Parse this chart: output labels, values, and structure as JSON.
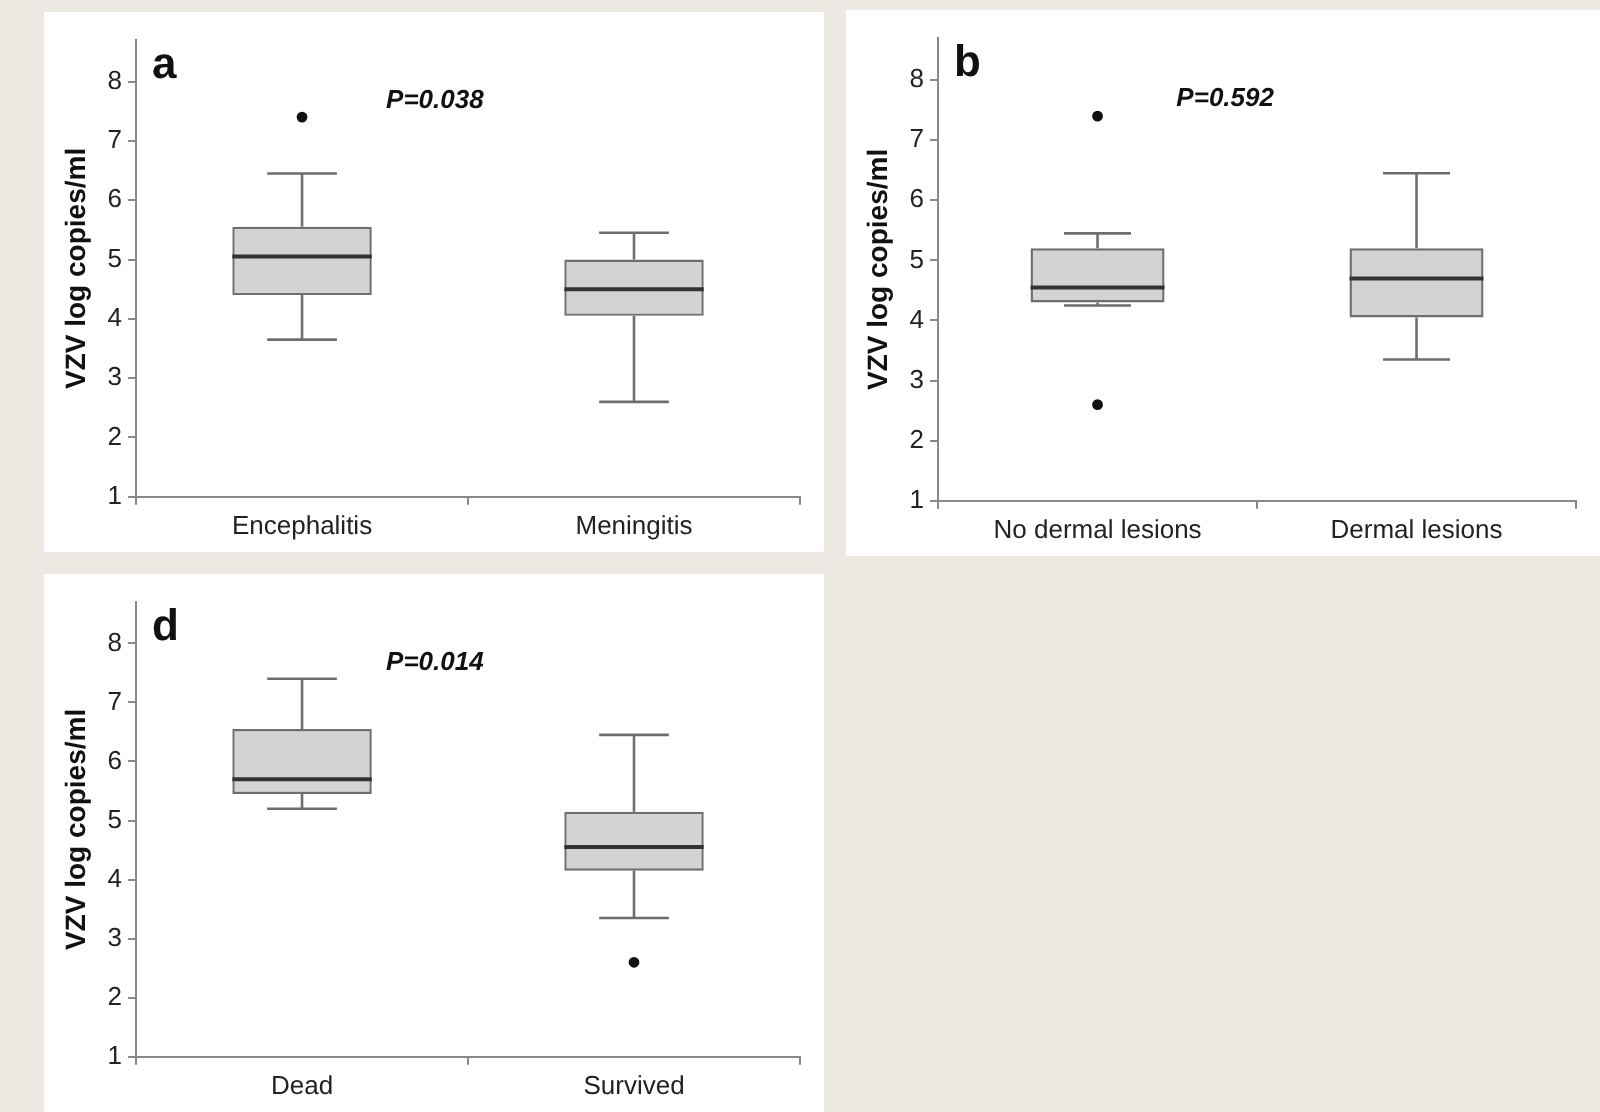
{
  "chart_data": [
    {
      "type": "box",
      "title": "a",
      "ylabel": "VZV log copies/ml",
      "categories": [
        "Encephalitis",
        "Meningitis"
      ],
      "boxes": [
        {
          "low": 3.65,
          "q1": 4.4,
          "median": 5.05,
          "q3": 5.55,
          "high": 6.45,
          "outliers": [
            7.4
          ]
        },
        {
          "low": 2.6,
          "q1": 4.05,
          "median": 4.5,
          "q3": 5.0,
          "high": 5.45
        }
      ],
      "ylim": [
        1,
        8.7
      ],
      "yticks": [
        1,
        2,
        3,
        4,
        5,
        6,
        7,
        8
      ],
      "annotations": [
        "P=0.038"
      ],
      "grid": false,
      "legend": false
    },
    {
      "type": "box",
      "title": "b",
      "ylabel": "VZV log copies/ml",
      "categories": [
        "No dermal lesions",
        "Dermal lesions"
      ],
      "boxes": [
        {
          "low": 4.25,
          "q1": 4.3,
          "median": 4.55,
          "q3": 5.2,
          "high": 5.45,
          "outliers": [
            7.4,
            2.6
          ]
        },
        {
          "low": 3.35,
          "q1": 4.05,
          "median": 4.7,
          "q3": 5.2,
          "high": 6.45
        }
      ],
      "ylim": [
        1,
        8.7
      ],
      "yticks": [
        1,
        2,
        3,
        4,
        5,
        6,
        7,
        8
      ],
      "annotations": [
        "P=0.592"
      ],
      "grid": false,
      "legend": false
    },
    {
      "type": "box",
      "title": "d",
      "ylabel": "VZV log copies/ml",
      "categories": [
        "Dead",
        "Survived"
      ],
      "boxes": [
        {
          "low": 5.2,
          "q1": 5.45,
          "median": 5.7,
          "q3": 6.55,
          "high": 7.4
        },
        {
          "low": 3.35,
          "q1": 4.15,
          "median": 4.55,
          "q3": 5.15,
          "high": 6.45,
          "outliers": [
            2.6
          ]
        }
      ],
      "ylim": [
        1,
        8.7
      ],
      "yticks": [
        1,
        2,
        3,
        4,
        5,
        6,
        7,
        8
      ],
      "annotations": [
        "P=0.014"
      ],
      "grid": false,
      "legend": false
    }
  ]
}
